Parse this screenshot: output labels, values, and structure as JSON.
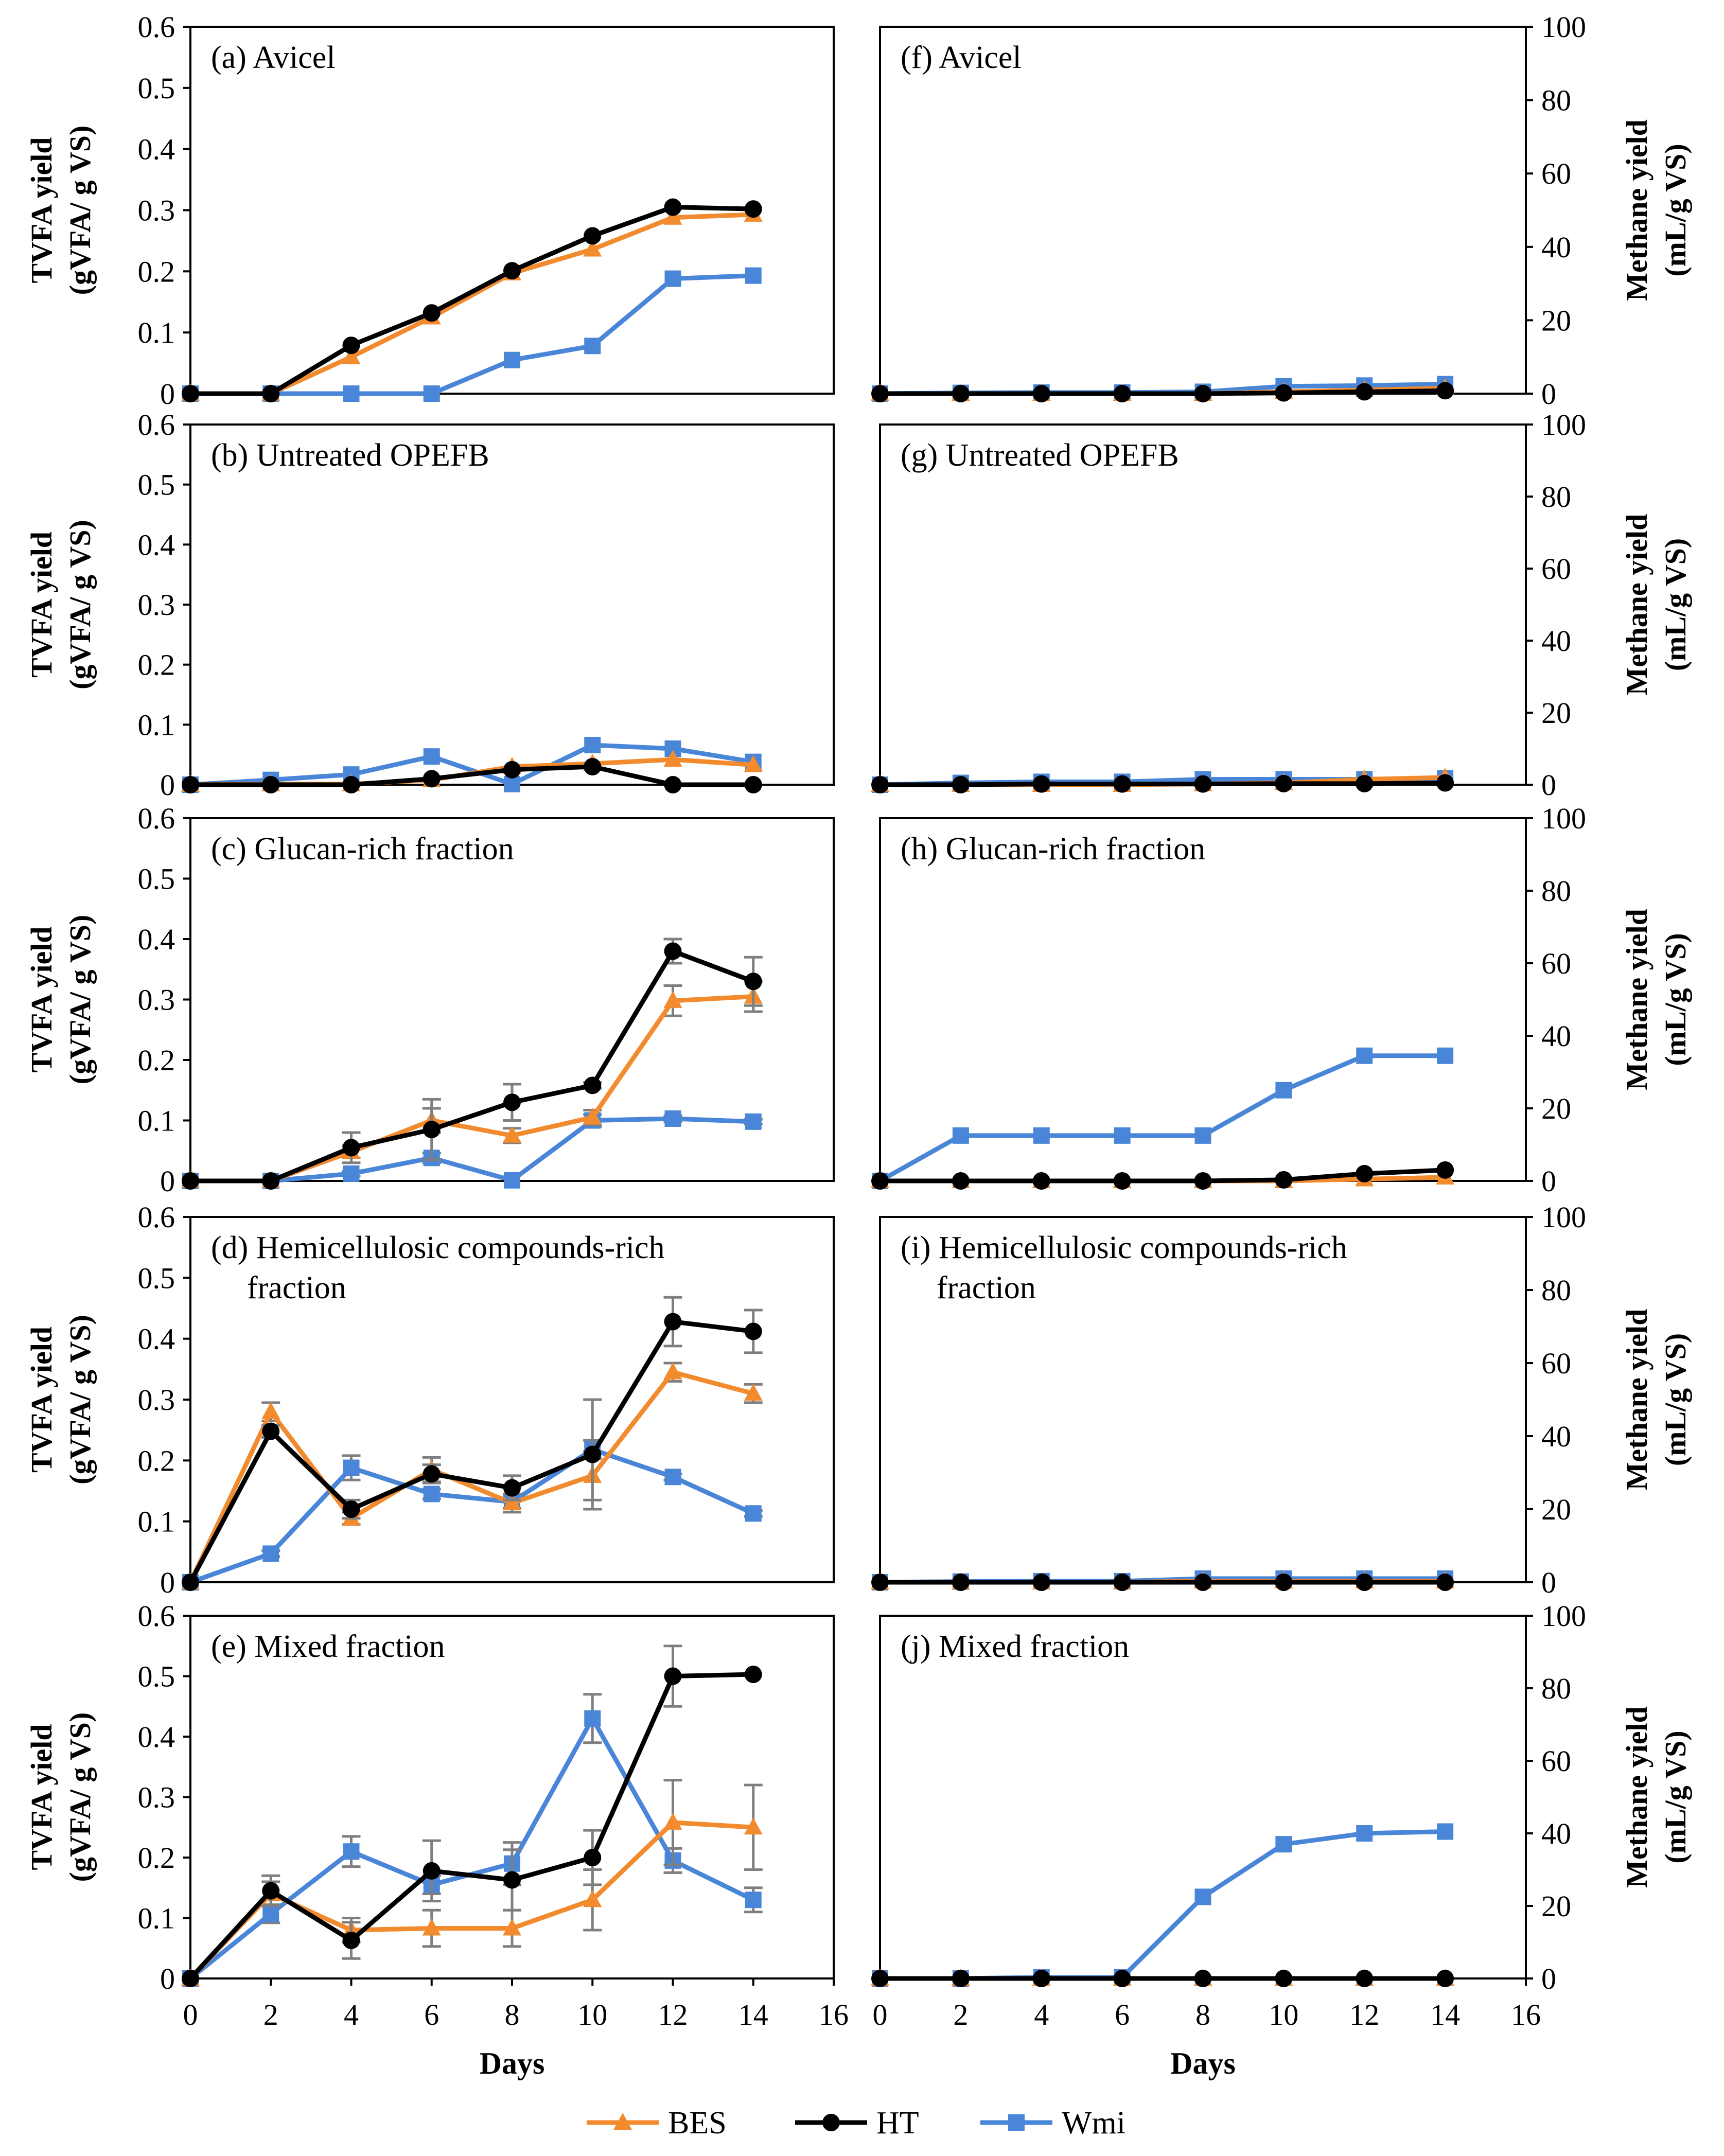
{
  "legend": [
    {
      "name": "BES",
      "color": "#F28A2E",
      "marker": "triangle"
    },
    {
      "name": "HT",
      "color": "#000000",
      "marker": "circle"
    },
    {
      "name": "Wmi",
      "color": "#4A86D8",
      "marker": "square"
    }
  ],
  "chart_data": [
    {
      "type": "line",
      "title": "(a) Avicel",
      "xlabel": "",
      "ylabel": [
        "TVFA yield",
        "(gVFA/ g VS)"
      ],
      "xlim": [
        0,
        16
      ],
      "ylim": [
        0,
        0.6
      ],
      "yticks": [
        "0",
        "0.1",
        "0.2",
        "0.3",
        "0.4",
        "0.5",
        "0.6"
      ],
      "xticks": [],
      "x": [
        0,
        2,
        4,
        6,
        8,
        10,
        12,
        14
      ],
      "series": [
        {
          "name": "BES",
          "values": [
            0,
            0,
            0.06,
            0.125,
            0.197,
            0.236,
            0.288,
            0.293
          ]
        },
        {
          "name": "HT",
          "values": [
            0,
            0,
            0.079,
            0.132,
            0.201,
            0.258,
            0.305,
            0.302
          ]
        },
        {
          "name": "Wmi",
          "values": [
            0,
            0,
            0,
            0,
            0.055,
            0.078,
            0.188,
            0.193
          ]
        }
      ]
    },
    {
      "type": "line",
      "title": "(f) Avicel",
      "xlabel": "",
      "ylabel": [
        "Methane yield",
        "(mL/g VS)"
      ],
      "xlim": [
        0,
        16
      ],
      "ylim": [
        0,
        100
      ],
      "yticks": [
        "0",
        "20",
        "40",
        "60",
        "80",
        "100"
      ],
      "xticks": [],
      "x": [
        0,
        2,
        4,
        6,
        8,
        10,
        12,
        14
      ],
      "series": [
        {
          "name": "BES",
          "values": [
            0,
            0,
            0,
            0,
            0,
            0.5,
            1,
            1.5
          ]
        },
        {
          "name": "HT",
          "values": [
            0,
            0,
            0,
            0,
            0,
            0.2,
            0.5,
            0.8
          ]
        },
        {
          "name": "Wmi",
          "values": [
            0,
            0.2,
            0.3,
            0.3,
            0.5,
            2,
            2.2,
            2.6
          ]
        }
      ]
    },
    {
      "type": "line",
      "title": "(b) Untreated OPEFB",
      "xlabel": "",
      "ylabel": [
        "TVFA yield",
        "(gVFA/ g VS)"
      ],
      "xlim": [
        0,
        16
      ],
      "ylim": [
        0,
        0.6
      ],
      "yticks": [
        "0",
        "0.1",
        "0.2",
        "0.3",
        "0.4",
        "0.5",
        "0.6"
      ],
      "xticks": [],
      "x": [
        0,
        2,
        4,
        6,
        8,
        10,
        12,
        14
      ],
      "series": [
        {
          "name": "BES",
          "values": [
            0,
            0.001,
            0.001,
            0.008,
            0.03,
            0.035,
            0.042,
            0.033
          ]
        },
        {
          "name": "HT",
          "values": [
            0,
            0,
            0,
            0.01,
            0.025,
            0.03,
            0,
            0
          ]
        },
        {
          "name": "Wmi",
          "values": [
            0,
            0.008,
            0.017,
            0.047,
            0.001,
            0.066,
            0.06,
            0.038
          ]
        }
      ]
    },
    {
      "type": "line",
      "title": "(g) Untreated OPEFB",
      "xlabel": "",
      "ylabel": [
        "Methane yield",
        "(mL/g VS)"
      ],
      "xlim": [
        0,
        16
      ],
      "ylim": [
        0,
        100
      ],
      "yticks": [
        "0",
        "20",
        "40",
        "60",
        "80",
        "100"
      ],
      "xticks": [],
      "x": [
        0,
        2,
        4,
        6,
        8,
        10,
        12,
        14
      ],
      "series": [
        {
          "name": "BES",
          "values": [
            0,
            0,
            0,
            0,
            0.2,
            0.5,
            1.5,
            2
          ]
        },
        {
          "name": "HT",
          "values": [
            0,
            0,
            0.2,
            0.2,
            0.2,
            0.3,
            0.3,
            0.5
          ]
        },
        {
          "name": "Wmi",
          "values": [
            0,
            0.5,
            0.8,
            0.8,
            1.5,
            1.5,
            1.5,
            1.8
          ]
        }
      ]
    },
    {
      "type": "line",
      "title": "(c) Glucan-rich fraction",
      "xlabel": "",
      "ylabel": [
        "TVFA yield",
        "(gVFA/ g VS)"
      ],
      "xlim": [
        0,
        16
      ],
      "ylim": [
        0,
        0.6
      ],
      "yticks": [
        "0",
        "0.1",
        "0.2",
        "0.3",
        "0.4",
        "0.5",
        "0.6"
      ],
      "xticks": [],
      "x": [
        0,
        2,
        4,
        6,
        8,
        10,
        12,
        14
      ],
      "series": [
        {
          "name": "BES",
          "values": [
            0,
            0,
            0.048,
            0.1,
            0.075,
            0.105,
            0.298,
            0.305
          ],
          "errors": [
            0,
            0,
            0.01,
            0.02,
            0.012,
            0.012,
            0.025,
            0.025
          ]
        },
        {
          "name": "HT",
          "values": [
            0,
            0,
            0.055,
            0.085,
            0.13,
            0.158,
            0.38,
            0.33
          ],
          "errors": [
            0,
            0,
            0.025,
            0.05,
            0.03,
            0.005,
            0.02,
            0.04
          ]
        },
        {
          "name": "Wmi",
          "values": [
            0,
            0,
            0.012,
            0.038,
            0.001,
            0.1,
            0.103,
            0.098
          ],
          "errors": [
            0,
            0,
            0.004,
            0.008,
            0,
            0.01,
            0.005,
            0.004
          ]
        }
      ]
    },
    {
      "type": "line",
      "title": "(h) Glucan-rich fraction",
      "xlabel": "",
      "ylabel": [
        "Methane yield",
        "(mL/g VS)"
      ],
      "xlim": [
        0,
        16
      ],
      "ylim": [
        0,
        100
      ],
      "yticks": [
        "0",
        "20",
        "40",
        "60",
        "80",
        "100"
      ],
      "xticks": [],
      "x": [
        0,
        2,
        4,
        6,
        8,
        10,
        12,
        14
      ],
      "series": [
        {
          "name": "BES",
          "values": [
            0,
            0,
            0,
            0,
            0,
            0,
            0.5,
            1
          ]
        },
        {
          "name": "HT",
          "values": [
            0,
            0,
            0,
            0,
            0,
            0.3,
            2,
            3
          ]
        },
        {
          "name": "Wmi",
          "values": [
            0,
            12.5,
            12.5,
            12.5,
            12.5,
            25,
            34.5,
            34.5
          ]
        }
      ]
    },
    {
      "type": "line",
      "title": "(d) Hemicellulosic compounds-rich fraction",
      "xlabel": "",
      "ylabel": [
        "TVFA yield",
        "(gVFA/ g VS)"
      ],
      "xlim": [
        0,
        16
      ],
      "ylim": [
        0,
        0.6
      ],
      "yticks": [
        "0",
        "0.1",
        "0.2",
        "0.3",
        "0.4",
        "0.5",
        "0.6"
      ],
      "xticks": [],
      "x": [
        0,
        2,
        4,
        6,
        8,
        10,
        12,
        14
      ],
      "series": [
        {
          "name": "BES",
          "values": [
            0,
            0.28,
            0.105,
            0.185,
            0.13,
            0.175,
            0.345,
            0.31
          ],
          "errors": [
            0,
            0.015,
            0.01,
            0.02,
            0.015,
            0.04,
            0.015,
            0.015
          ]
        },
        {
          "name": "HT",
          "values": [
            0,
            0.248,
            0.12,
            0.178,
            0.155,
            0.21,
            0.428,
            0.412
          ],
          "errors": [
            0,
            0.01,
            0.015,
            0.015,
            0.02,
            0.09,
            0.04,
            0.035
          ]
        },
        {
          "name": "Wmi",
          "values": [
            0,
            0.047,
            0.188,
            0.145,
            0.132,
            0.218,
            0.173,
            0.113
          ],
          "errors": [
            0,
            0.005,
            0.02,
            0.008,
            0.01,
            0.015,
            0.005,
            0.005
          ]
        }
      ]
    },
    {
      "type": "line",
      "title": "(i) Hemicellulosic compounds-rich fraction",
      "xlabel": "",
      "ylabel": [
        "Methane yield",
        "(mL/g VS)"
      ],
      "xlim": [
        0,
        16
      ],
      "ylim": [
        0,
        100
      ],
      "yticks": [
        "0",
        "20",
        "40",
        "60",
        "80",
        "100"
      ],
      "xticks": [],
      "x": [
        0,
        2,
        4,
        6,
        8,
        10,
        12,
        14
      ],
      "series": [
        {
          "name": "BES",
          "values": [
            0,
            0,
            0,
            0,
            0.3,
            0.3,
            0.3,
            0.3
          ]
        },
        {
          "name": "HT",
          "values": [
            0,
            0,
            0,
            0,
            0,
            0,
            0,
            0
          ]
        },
        {
          "name": "Wmi",
          "values": [
            0,
            0.2,
            0.3,
            0.3,
            1,
            1,
            1,
            1
          ]
        }
      ]
    },
    {
      "type": "line",
      "title": "(e) Mixed fraction",
      "xlabel": "Days",
      "ylabel": [
        "TVFA yield",
        "(gVFA/ g VS)"
      ],
      "xlim": [
        0,
        16
      ],
      "ylim": [
        0,
        0.6
      ],
      "yticks": [
        "0",
        "0.1",
        "0.2",
        "0.3",
        "0.4",
        "0.5",
        "0.6"
      ],
      "xticks": [
        "0",
        "2",
        "4",
        "6",
        "8",
        "10",
        "12",
        "14",
        "16"
      ],
      "x": [
        0,
        2,
        4,
        6,
        8,
        10,
        12,
        14
      ],
      "series": [
        {
          "name": "BES",
          "values": [
            0,
            0.14,
            0.08,
            0.083,
            0.083,
            0.13,
            0.258,
            0.25
          ],
          "errors": [
            0,
            0.02,
            0.02,
            0.03,
            0.03,
            0.05,
            0.07,
            0.07
          ]
        },
        {
          "name": "HT",
          "values": [
            0,
            0.145,
            0.063,
            0.178,
            0.163,
            0.2,
            0.5,
            0.503
          ],
          "errors": [
            0,
            0.025,
            0.03,
            0.05,
            0.05,
            0.045,
            0.05,
            0
          ]
        },
        {
          "name": "Wmi",
          "values": [
            0,
            0.107,
            0.21,
            0.155,
            0.19,
            0.43,
            0.195,
            0.13
          ],
          "errors": [
            0,
            0.015,
            0.025,
            0.015,
            0.035,
            0.04,
            0.02,
            0.02
          ]
        }
      ]
    },
    {
      "type": "line",
      "title": "(j) Mixed fraction",
      "xlabel": "Days",
      "ylabel": [
        "Methane yield",
        "(mL/g VS)"
      ],
      "xlim": [
        0,
        16
      ],
      "ylim": [
        0,
        100
      ],
      "yticks": [
        "0",
        "20",
        "40",
        "60",
        "80",
        "100"
      ],
      "xticks": [
        "0",
        "2",
        "4",
        "6",
        "8",
        "10",
        "12",
        "14",
        "16"
      ],
      "x": [
        0,
        2,
        4,
        6,
        8,
        10,
        12,
        14
      ],
      "series": [
        {
          "name": "BES",
          "values": [
            0,
            0,
            0,
            0,
            0,
            0,
            0,
            0
          ]
        },
        {
          "name": "HT",
          "values": [
            0,
            0,
            0,
            0,
            0,
            0,
            0,
            0
          ]
        },
        {
          "name": "Wmi",
          "values": [
            0,
            0,
            0.3,
            0.3,
            22.5,
            37,
            40,
            40.5
          ]
        }
      ]
    }
  ]
}
